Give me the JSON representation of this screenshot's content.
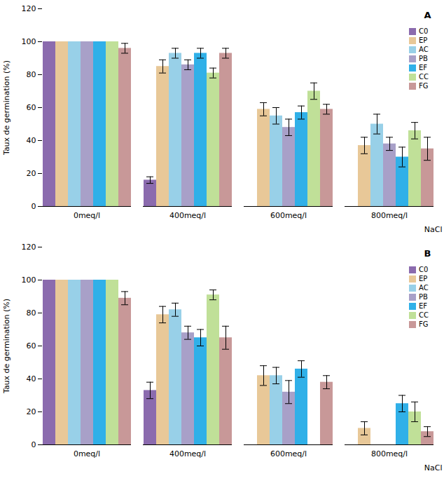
{
  "chart_data": [
    {
      "type": "bar",
      "annotations": [
        "A"
      ],
      "xlabel": "NaCl",
      "ylabel": "Taux de germination (%)",
      "categories": [
        "0meq/l",
        "400meq/l",
        "600meq/l",
        "800meq/l"
      ],
      "series": [
        {
          "name": "C0",
          "color": "#8B6BAE",
          "values": [
            100,
            16,
            0,
            0
          ],
          "errors": [
            0,
            2,
            0,
            0
          ]
        },
        {
          "name": "EP",
          "color": "#E8C898",
          "values": [
            100,
            85,
            59,
            37
          ],
          "errors": [
            0,
            4,
            4,
            5
          ]
        },
        {
          "name": "AC",
          "color": "#98D0E8",
          "values": [
            100,
            93,
            55,
            50
          ],
          "errors": [
            0,
            3,
            5,
            6
          ]
        },
        {
          "name": "PB",
          "color": "#A8A0C8",
          "values": [
            100,
            86,
            48,
            38
          ],
          "errors": [
            0,
            3,
            5,
            4
          ]
        },
        {
          "name": "EF",
          "color": "#30B0E8",
          "values": [
            100,
            93,
            57,
            30
          ],
          "errors": [
            0,
            3,
            4,
            6
          ]
        },
        {
          "name": "CC",
          "color": "#C0E098",
          "values": [
            100,
            81,
            70,
            46
          ],
          "errors": [
            0,
            3,
            5,
            5
          ]
        },
        {
          "name": "FG",
          "color": "#C89898",
          "values": [
            96,
            93,
            59,
            35
          ],
          "errors": [
            3,
            3,
            3,
            7
          ]
        }
      ],
      "ylim": [
        0,
        120
      ],
      "yticks": [
        0,
        20,
        40,
        60,
        80,
        100,
        120
      ],
      "grid": false,
      "legend": "upper right"
    },
    {
      "type": "bar",
      "annotations": [
        "B"
      ],
      "xlabel": "NaCl",
      "ylabel": "Taux de germination (%)",
      "categories": [
        "0meq/l",
        "400meq/l",
        "600meq/l",
        "800meq/l"
      ],
      "series": [
        {
          "name": "C0",
          "color": "#8B6BAE",
          "values": [
            100,
            33,
            0,
            0
          ],
          "errors": [
            0,
            5,
            0,
            0
          ]
        },
        {
          "name": "EP",
          "color": "#E8C898",
          "values": [
            100,
            79,
            42,
            10
          ],
          "errors": [
            0,
            5,
            6,
            4
          ]
        },
        {
          "name": "AC",
          "color": "#98D0E8",
          "values": [
            100,
            82,
            42,
            0
          ],
          "errors": [
            0,
            4,
            5,
            0
          ]
        },
        {
          "name": "PB",
          "color": "#A8A0C8",
          "values": [
            100,
            68,
            32,
            0
          ],
          "errors": [
            0,
            4,
            7,
            0
          ]
        },
        {
          "name": "EF",
          "color": "#30B0E8",
          "values": [
            100,
            65,
            46,
            25
          ],
          "errors": [
            0,
            5,
            5,
            5
          ]
        },
        {
          "name": "CC",
          "color": "#C0E098",
          "values": [
            100,
            91,
            0,
            20
          ],
          "errors": [
            0,
            3,
            0,
            6
          ]
        },
        {
          "name": "FG",
          "color": "#C89898",
          "values": [
            89,
            65,
            38,
            8
          ],
          "errors": [
            4,
            7,
            4,
            3
          ]
        }
      ],
      "ylim": [
        0,
        120
      ],
      "yticks": [
        0,
        20,
        40,
        60,
        80,
        100,
        120
      ],
      "grid": false,
      "legend": "upper right"
    }
  ]
}
